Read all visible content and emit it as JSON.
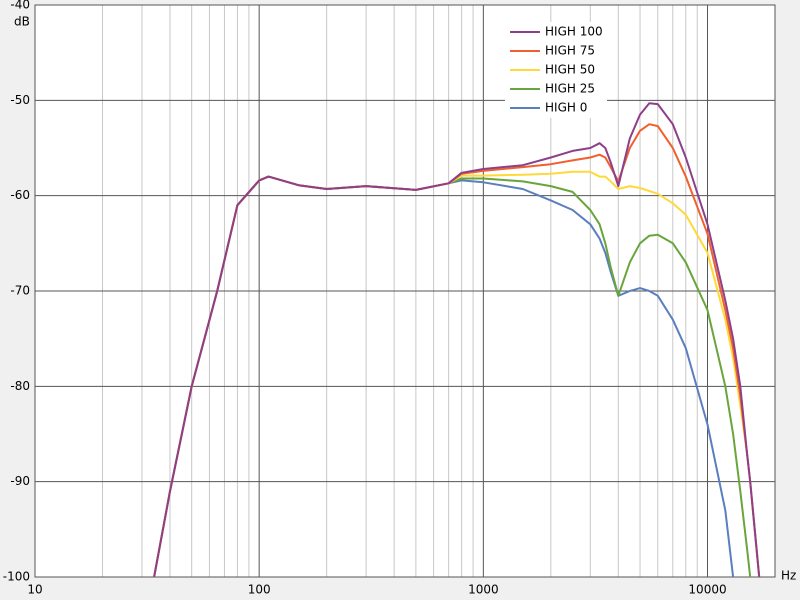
{
  "chart_data": {
    "type": "line",
    "x_label": "Hz",
    "y_label": "dB",
    "log_x": true,
    "grid": true,
    "minor_grid": true,
    "legend": "upper-center",
    "x": [
      34,
      40,
      50,
      65,
      80,
      100,
      110,
      150,
      200,
      300,
      500,
      700,
      800,
      1000,
      1500,
      2000,
      2500,
      3000,
      3300,
      3500,
      3700,
      4000,
      4500,
      5000,
      5500,
      6000,
      7000,
      8000,
      10000,
      12000,
      13000,
      14000,
      15000,
      15500,
      17000
    ],
    "xlim": [
      10,
      20000
    ],
    "xticks": [
      10,
      100,
      1000,
      10000
    ],
    "ylim": [
      -100,
      -40
    ],
    "yticks": [
      -100,
      -90,
      -80,
      -70,
      -60,
      -50,
      -40
    ],
    "series": [
      {
        "name": "HIGH 100",
        "color": "#8e3f8a",
        "values": [
          -100,
          -91,
          -80,
          -70,
          -61,
          -58.4,
          -58,
          -58.9,
          -59.3,
          -59,
          -59.4,
          -58.7,
          -57.6,
          -57.2,
          -56.8,
          -56,
          -55.3,
          -55,
          -54.5,
          -55,
          -56.5,
          -59,
          -54,
          -51.5,
          -50.3,
          -50.4,
          -52.5,
          -56,
          -63,
          -71,
          -75,
          -80,
          -87,
          -90,
          -100
        ]
      },
      {
        "name": "HIGH 75",
        "color": "#f0602e",
        "values": [
          -100,
          -91,
          -80,
          -70,
          -61,
          -58.4,
          -58,
          -58.9,
          -59.3,
          -59,
          -59.4,
          -58.7,
          -57.7,
          -57.4,
          -57,
          -56.7,
          -56.3,
          -56,
          -55.7,
          -56,
          -57,
          -58.5,
          -55,
          -53.2,
          -52.5,
          -52.7,
          -55,
          -58,
          -64,
          -72,
          -76,
          -81,
          -87,
          -90,
          -100
        ]
      },
      {
        "name": "HIGH 50",
        "color": "#ffd83a",
        "values": [
          -100,
          -91,
          -80,
          -70,
          -61,
          -58.4,
          -58,
          -58.9,
          -59.3,
          -59,
          -59.4,
          -58.7,
          -57.9,
          -57.9,
          -57.8,
          -57.7,
          -57.5,
          -57.5,
          -58,
          -58,
          -58.5,
          -59.3,
          -59,
          -59.2,
          -59.5,
          -59.8,
          -60.8,
          -62,
          -66,
          -73,
          -77,
          -82,
          -87,
          -90,
          -100
        ]
      },
      {
        "name": "HIGH 25",
        "color": "#6aa53c",
        "values": [
          -100,
          -91,
          -80,
          -70,
          -61,
          -58.4,
          -58,
          -58.9,
          -59.3,
          -59,
          -59.4,
          -58.7,
          -58.2,
          -58.2,
          -58.5,
          -59,
          -59.6,
          -61.5,
          -63,
          -65,
          -67.5,
          -70.5,
          -67,
          -65,
          -64.2,
          -64.1,
          -65,
          -67,
          -72,
          -80,
          -85,
          -91,
          -97,
          -100,
          null
        ]
      },
      {
        "name": "HIGH 0",
        "color": "#5a7fbf",
        "values": [
          -100,
          -91,
          -80,
          -70,
          -61,
          -58.4,
          -58,
          -58.9,
          -59.3,
          -59,
          -59.4,
          -58.7,
          -58.4,
          -58.6,
          -59.3,
          -60.5,
          -61.5,
          -63,
          -64.5,
          -66,
          -68,
          -70.5,
          -70,
          -69.7,
          -70,
          -70.5,
          -73,
          -76,
          -84,
          -93,
          -100,
          null,
          null,
          null,
          null
        ]
      }
    ]
  }
}
